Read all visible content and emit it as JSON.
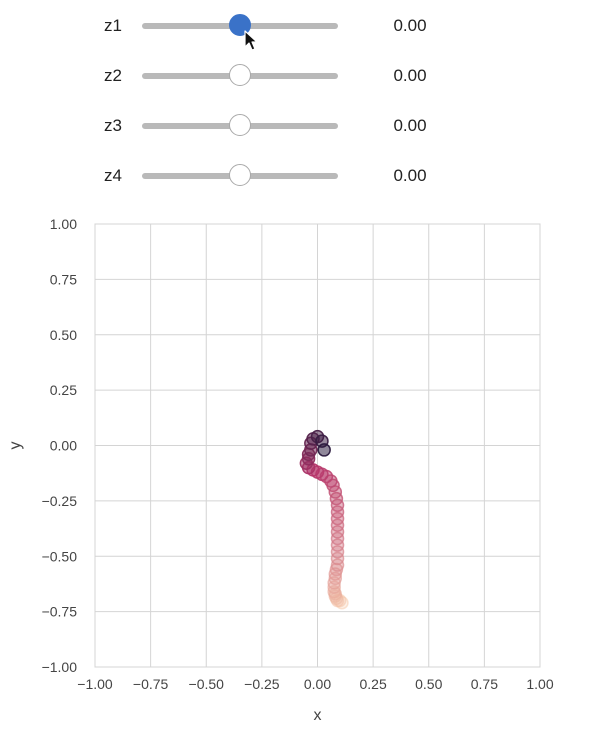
{
  "sliders": [
    {
      "label": "z1",
      "value": 0.0,
      "value_text": "0.00",
      "min": -1,
      "max": 1,
      "active": true
    },
    {
      "label": "z2",
      "value": 0.0,
      "value_text": "0.00",
      "min": -1,
      "max": 1,
      "active": false
    },
    {
      "label": "z3",
      "value": 0.0,
      "value_text": "0.00",
      "min": -1,
      "max": 1,
      "active": false
    },
    {
      "label": "z4",
      "value": 0.0,
      "value_text": "0.00",
      "min": -1,
      "max": 1,
      "active": false
    }
  ],
  "colors": {
    "active_knob": "#3a72c8",
    "track": "#b9b9b9",
    "grid": "#d4d4d4",
    "trajectory_start": "#2b1a3e",
    "trajectory_mid": "#b5356a",
    "trajectory_end": "#f6c9a9"
  },
  "cursor_icon": "arrow-pointer-icon",
  "chart_data": {
    "type": "scatter",
    "xlabel": "x",
    "ylabel": "y",
    "xlim": [
      -1,
      1
    ],
    "ylim": [
      -1,
      1
    ],
    "grid": true,
    "xticks": [
      "−1.00",
      "−0.75",
      "−0.50",
      "−0.25",
      "0.00",
      "0.25",
      "0.50",
      "0.75",
      "1.00"
    ],
    "yticks": [
      "1.00",
      "0.75",
      "0.50",
      "0.25",
      "0.00",
      "−0.25",
      "−0.50",
      "−0.75",
      "−1.00"
    ],
    "x": [
      0.03,
      0.02,
      0.0,
      -0.02,
      -0.03,
      -0.03,
      -0.04,
      -0.04,
      -0.05,
      -0.04,
      -0.02,
      0.0,
      0.02,
      0.04,
      0.06,
      0.07,
      0.08,
      0.085,
      0.09,
      0.09,
      0.09,
      0.09,
      0.09,
      0.09,
      0.09,
      0.09,
      0.09,
      0.09,
      0.085,
      0.08,
      0.08,
      0.075,
      0.075,
      0.075,
      0.08,
      0.08,
      0.085,
      0.09,
      0.1,
      0.11
    ],
    "y": [
      -0.02,
      0.02,
      0.04,
      0.03,
      0.01,
      -0.02,
      -0.04,
      -0.06,
      -0.08,
      -0.1,
      -0.11,
      -0.12,
      -0.13,
      -0.14,
      -0.16,
      -0.18,
      -0.21,
      -0.24,
      -0.27,
      -0.3,
      -0.33,
      -0.36,
      -0.39,
      -0.42,
      -0.45,
      -0.48,
      -0.51,
      -0.54,
      -0.56,
      -0.58,
      -0.6,
      -0.62,
      -0.64,
      -0.66,
      -0.67,
      -0.68,
      -0.69,
      -0.7,
      -0.7,
      -0.71
    ]
  }
}
